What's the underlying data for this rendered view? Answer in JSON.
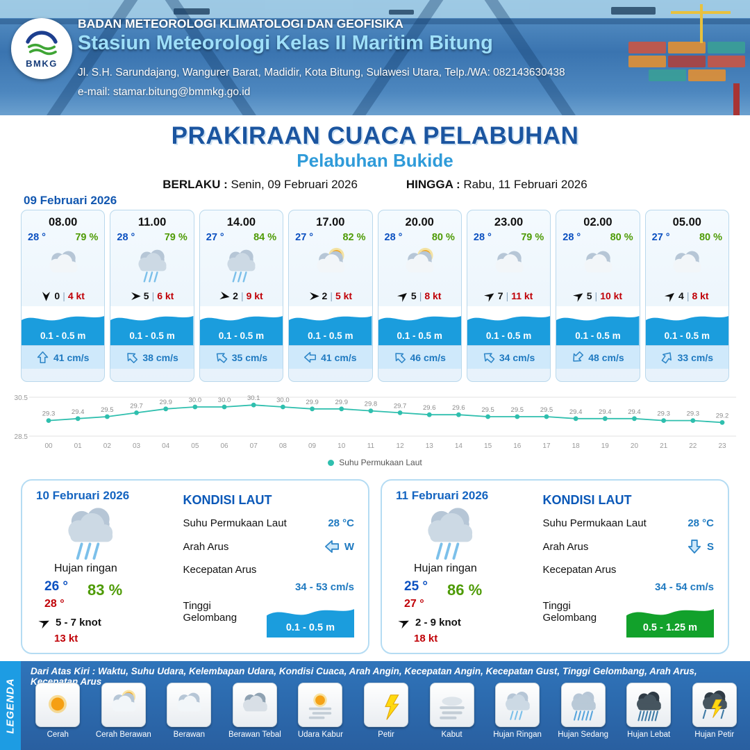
{
  "header": {
    "org": "BADAN METEOROLOGI KLIMATOLOGI DAN GEOFISIKA",
    "station": "Stasiun Meteorologi Kelas II Maritim Bitung",
    "address": "Jl. S.H. Sarundajang, Wangurer Barat, Madidir, Kota Bitung, Sulawesi Utara, Telp./WA: 082143630438",
    "email": "e-mail: stamar.bitung@bmmkg.go.id",
    "logo_text": "BMKG"
  },
  "title": {
    "main": "PRAKIRAAN CUACA PELABUHAN",
    "sub": "Pelabuhan Bukide",
    "berlaku_label": "BERLAKU :",
    "berlaku_value": "Senin, 09 Februari 2026",
    "hingga_label": "HINGGA :",
    "hingga_value": "Rabu, 11 Februari 2026"
  },
  "forecast_date": "09 Februari 2026",
  "forecast_cards": [
    {
      "time": "08.00",
      "temp": "28 °",
      "humidity": "79 %",
      "icon": "berawan",
      "wind_speed": "0",
      "gust": "4 kt",
      "wind_rot": 90,
      "wave": "0.1 - 0.5 m",
      "current": "41 cm/s",
      "current_rot": 0
    },
    {
      "time": "11.00",
      "temp": "28 °",
      "humidity": "79 %",
      "icon": "hujan-ringan",
      "wind_speed": "5",
      "gust": "6 kt",
      "wind_rot": 0,
      "wave": "0.1 - 0.5 m",
      "current": "38 cm/s",
      "current_rot": -45
    },
    {
      "time": "14.00",
      "temp": "27 °",
      "humidity": "84 %",
      "icon": "hujan-ringan",
      "wind_speed": "2",
      "gust": "9 kt",
      "wind_rot": 10,
      "wave": "0.1 - 0.5 m",
      "current": "35 cm/s",
      "current_rot": -50
    },
    {
      "time": "17.00",
      "temp": "27 °",
      "humidity": "82 %",
      "icon": "cerah-berawan",
      "wind_speed": "2",
      "gust": "5 kt",
      "wind_rot": 0,
      "wave": "0.1 - 0.5 m",
      "current": "41 cm/s",
      "current_rot": -90
    },
    {
      "time": "20.00",
      "temp": "28 °",
      "humidity": "80 %",
      "icon": "cerah-berawan",
      "wind_speed": "5",
      "gust": "8 kt",
      "wind_rot": -40,
      "wave": "0.1 - 0.5 m",
      "current": "46 cm/s",
      "current_rot": -45
    },
    {
      "time": "23.00",
      "temp": "28 °",
      "humidity": "79 %",
      "icon": "berawan",
      "wind_speed": "7",
      "gust": "11 kt",
      "wind_rot": -35,
      "wave": "0.1 - 0.5 m",
      "current": "34 cm/s",
      "current_rot": -50
    },
    {
      "time": "02.00",
      "temp": "28 °",
      "humidity": "80 %",
      "icon": "berawan",
      "wind_speed": "5",
      "gust": "10 kt",
      "wind_rot": -35,
      "wave": "0.1 - 0.5 m",
      "current": "48 cm/s",
      "current_rot": -135
    },
    {
      "time": "05.00",
      "temp": "27 °",
      "humidity": "80 %",
      "icon": "berawan",
      "wind_speed": "4",
      "gust": "8 kt",
      "wind_rot": -40,
      "wave": "0.1 - 0.5 m",
      "current": "33 cm/s",
      "current_rot": 35
    }
  ],
  "chart_data": {
    "type": "line",
    "x": [
      "00",
      "01",
      "02",
      "03",
      "04",
      "05",
      "06",
      "07",
      "08",
      "09",
      "10",
      "11",
      "12",
      "13",
      "14",
      "15",
      "16",
      "17",
      "18",
      "19",
      "20",
      "21",
      "22",
      "23"
    ],
    "values": [
      29.3,
      29.4,
      29.5,
      29.7,
      29.9,
      30.0,
      30.0,
      30.1,
      30.0,
      29.9,
      29.9,
      29.8,
      29.7,
      29.6,
      29.6,
      29.5,
      29.5,
      29.5,
      29.4,
      29.4,
      29.4,
      29.3,
      29.3,
      29.2
    ],
    "ylim": [
      28.5,
      30.5
    ],
    "y_ticks": [
      "30.5",
      "28.5"
    ],
    "xlabel": "",
    "ylabel": "",
    "legend": "Suhu Permukaan Laut",
    "line_color": "#2fbfae",
    "grid": true,
    "legend_position": "bottom-center"
  },
  "daily_cards": [
    {
      "date": "10 Februari 2026",
      "icon": "hujan-ringan",
      "condition": "Hujan ringan",
      "temp_min": "26 °",
      "temp_max": "28 °",
      "humidity": "83 %",
      "wind": "5  - 7 knot",
      "wind_rot": -25,
      "gust": "13 kt",
      "sea_title": "KONDISI LAUT",
      "sst_label": "Suhu Permukaan Laut",
      "sst_value": "28 °C",
      "current_dir_label": "Arah Arus",
      "current_dir_value": "W",
      "current_dir_rot": -90,
      "current_speed_label": "Kecepatan Arus",
      "current_speed_value": "34 - 53 cm/s",
      "wave_label": "Tinggi Gelombang",
      "wave_value": "0.1 - 0.5 m",
      "wave_color": "#1b9ddd"
    },
    {
      "date": "11 Februari 2026",
      "icon": "hujan-ringan",
      "condition": "Hujan ringan",
      "temp_min": "25 °",
      "temp_max": "27 °",
      "humidity": "86 %",
      "wind": "2  - 9 knot",
      "wind_rot": -25,
      "gust": "18 kt",
      "sea_title": "KONDISI LAUT",
      "sst_label": "Suhu Permukaan Laut",
      "sst_value": "28 °C",
      "current_dir_label": "Arah Arus",
      "current_dir_value": "S",
      "current_dir_rot": 180,
      "current_speed_label": "Kecepatan Arus",
      "current_speed_value": "34 - 54 cm/s",
      "wave_label": "Tinggi Gelombang",
      "wave_value": "0.5 - 1.25 m",
      "wave_color": "#12a12b"
    }
  ],
  "legend": {
    "sidebar": "LEGENDA",
    "note": "Dari Atas Kiri : Waktu, Suhu Udara, Kelembapan Udara, Kondisi Cuaca, Arah Angin, Kecepatan Angin, Kecepatan Gust, Tinggi Gelombang, Arah Arus, Kecepatan Arus",
    "items": [
      {
        "label": "Cerah",
        "icon": "cerah"
      },
      {
        "label": "Cerah Berawan",
        "icon": "cerah-berawan"
      },
      {
        "label": "Berawan",
        "icon": "berawan"
      },
      {
        "label": "Berawan Tebal",
        "icon": "berawan-tebal"
      },
      {
        "label": "Udara Kabur",
        "icon": "udara-kabur"
      },
      {
        "label": "Petir",
        "icon": "petir"
      },
      {
        "label": "Kabut",
        "icon": "kabut"
      },
      {
        "label": "Hujan Ringan",
        "icon": "hujan-ringan"
      },
      {
        "label": "Hujan Sedang",
        "icon": "hujan-sedang"
      },
      {
        "label": "Hujan Lebat",
        "icon": "hujan-lebat"
      },
      {
        "label": "Hujan Petir",
        "icon": "hujan-petir"
      }
    ]
  }
}
